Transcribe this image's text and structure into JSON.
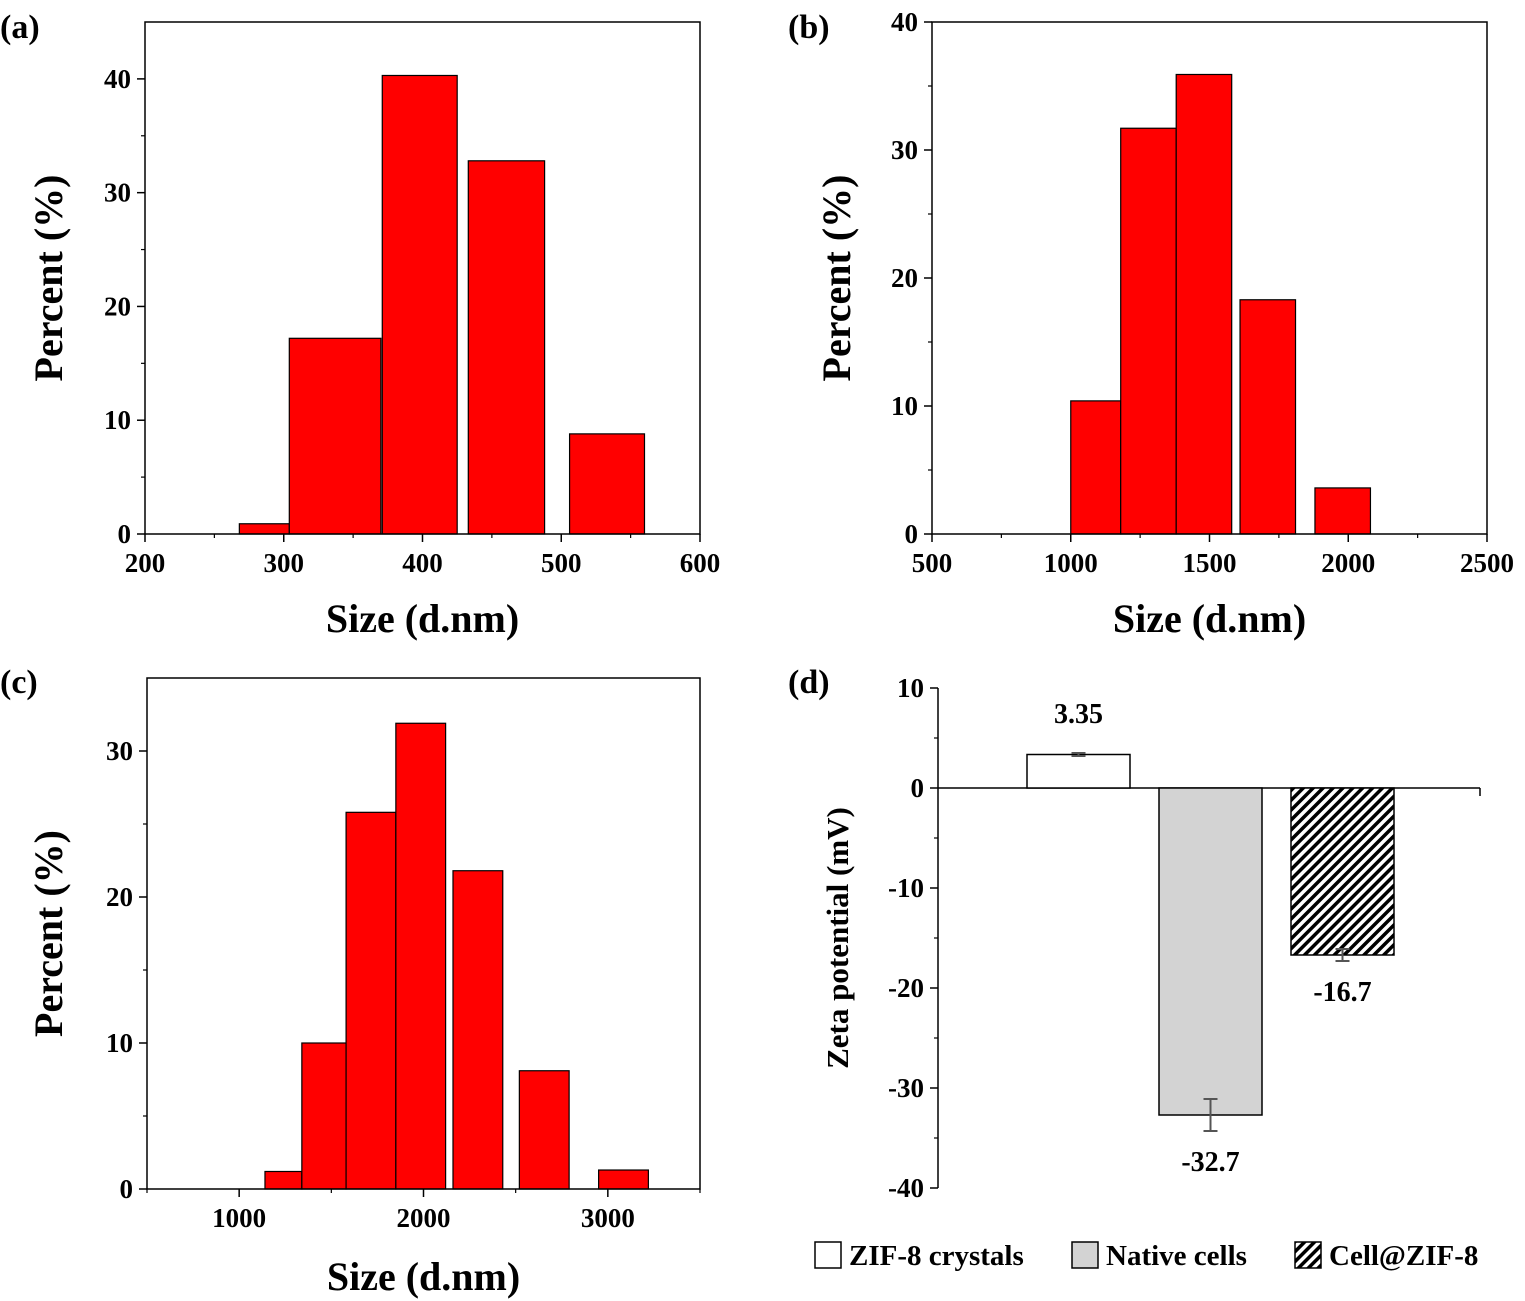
{
  "chart_data": [
    {
      "type": "bar",
      "panel_label": "(a)",
      "xlabel": "Size (d.nm)",
      "ylabel": "Percent (%)",
      "xlim": [
        200,
        600
      ],
      "ylim": [
        0,
        45
      ],
      "x_ticks": [
        "200",
        "300",
        "400",
        "500",
        "600"
      ],
      "y_ticks": [
        "0",
        "10",
        "20",
        "30",
        "40"
      ],
      "bar_color": "#ff0000",
      "bars": [
        {
          "from": 268,
          "to": 304,
          "value": 0.9
        },
        {
          "from": 304,
          "to": 370,
          "value": 17.2
        },
        {
          "from": 371,
          "to": 425,
          "value": 40.3
        },
        {
          "from": 433,
          "to": 488,
          "value": 32.8
        },
        {
          "from": 506,
          "to": 560,
          "value": 8.8
        }
      ]
    },
    {
      "type": "bar",
      "panel_label": "(b)",
      "xlabel": "Size (d.nm)",
      "ylabel": "Percent (%)",
      "xlim": [
        500,
        2500
      ],
      "ylim": [
        0,
        40
      ],
      "x_ticks": [
        "500",
        "1000",
        "1500",
        "2000",
        "2500"
      ],
      "y_ticks": [
        "0",
        "10",
        "20",
        "30",
        "40"
      ],
      "bar_color": "#ff0000",
      "bars": [
        {
          "from": 1000,
          "to": 1180,
          "value": 10.4
        },
        {
          "from": 1180,
          "to": 1380,
          "value": 31.7
        },
        {
          "from": 1380,
          "to": 1580,
          "value": 35.9
        },
        {
          "from": 1610,
          "to": 1810,
          "value": 18.3
        },
        {
          "from": 1880,
          "to": 2080,
          "value": 3.6
        }
      ]
    },
    {
      "type": "bar",
      "panel_label": "(c)",
      "xlabel": "Size (d.nm)",
      "ylabel": "Percent (%)",
      "xlim": [
        500,
        3500
      ],
      "ylim": [
        0,
        35
      ],
      "x_ticks": [
        "1000",
        "2000",
        "3000"
      ],
      "y_ticks": [
        "0",
        "10",
        "20",
        "30"
      ],
      "bar_color": "#ff0000",
      "bars": [
        {
          "from": 1140,
          "to": 1340,
          "value": 1.2
        },
        {
          "from": 1340,
          "to": 1580,
          "value": 10.0
        },
        {
          "from": 1580,
          "to": 1850,
          "value": 25.8
        },
        {
          "from": 1850,
          "to": 2120,
          "value": 31.9
        },
        {
          "from": 2160,
          "to": 2430,
          "value": 21.8
        },
        {
          "from": 2520,
          "to": 2790,
          "value": 8.1
        },
        {
          "from": 2950,
          "to": 3220,
          "value": 1.3
        }
      ]
    },
    {
      "type": "bar",
      "panel_label": "(d)",
      "ylabel": "Zeta potential (mV)",
      "ylim": [
        -40,
        10
      ],
      "y_ticks": [
        "10",
        "0",
        "-10",
        "-20",
        "-30",
        "-40"
      ],
      "categories": [
        "ZIF-8 crystals",
        "Native cells",
        "Cell@ZIF-8"
      ],
      "values": [
        3.35,
        -32.7,
        -16.7
      ],
      "errors": [
        0.15,
        1.6,
        0.6
      ],
      "value_labels": [
        "3.35",
        "-32.7",
        "-16.7"
      ],
      "fills": [
        "#ffffff",
        "#d3d3d3",
        "hatched"
      ],
      "legend_position": "bottom"
    }
  ]
}
